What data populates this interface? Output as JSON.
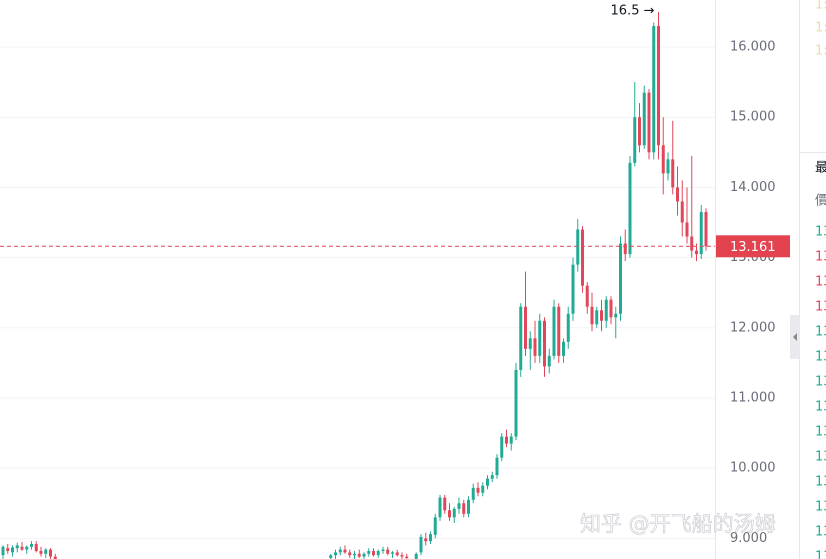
{
  "chart_data": {
    "type": "candlestick",
    "up_color": "#22ab94",
    "down_color": "#e0475a",
    "ylim": [
      8.706,
      16.67
    ],
    "yticks": [
      {
        "value": 16,
        "label": "16.000"
      },
      {
        "value": 15,
        "label": "15.000"
      },
      {
        "value": 14,
        "label": "14.000"
      },
      {
        "value": 13,
        "label": "13.000"
      },
      {
        "value": 12,
        "label": "12.000"
      },
      {
        "value": 11,
        "label": "11.000"
      },
      {
        "value": 10,
        "label": "10.000"
      },
      {
        "value": 9,
        "label": "9.000"
      }
    ],
    "grid": true,
    "last_price": 13.161,
    "high_annotation": "16.5 →",
    "watermark": "知乎 @开飞船的汤姆",
    "ohlc": [
      [
        8.76,
        8.9,
        8.7,
        8.88
      ],
      [
        8.86,
        8.92,
        8.78,
        8.82
      ],
      [
        8.8,
        8.9,
        8.74,
        8.87
      ],
      [
        8.86,
        8.94,
        8.8,
        8.9
      ],
      [
        8.88,
        8.95,
        8.82,
        8.84
      ],
      [
        8.84,
        8.9,
        8.78,
        8.88
      ],
      [
        8.88,
        8.96,
        8.84,
        8.92
      ],
      [
        8.92,
        8.96,
        8.8,
        8.82
      ],
      [
        8.82,
        8.88,
        8.74,
        8.78
      ],
      [
        8.78,
        8.86,
        8.72,
        8.84
      ],
      [
        8.84,
        8.86,
        8.7,
        8.74
      ],
      [
        8.74,
        8.78,
        8.66,
        8.7
      ],
      null,
      null,
      null,
      null,
      null,
      null,
      null,
      null,
      null,
      null,
      null,
      null,
      null,
      null,
      null,
      null,
      null,
      null,
      null,
      null,
      null,
      null,
      null,
      null,
      null,
      null,
      null,
      null,
      null,
      null,
      null,
      null,
      null,
      null,
      null,
      null,
      null,
      null,
      null,
      null,
      null,
      null,
      null,
      null,
      null,
      null,
      null,
      null,
      null,
      null,
      null,
      null,
      null,
      null,
      null,
      null,
      null,
      [
        8.72,
        8.78,
        8.66,
        8.76
      ],
      [
        8.76,
        8.84,
        8.7,
        8.8
      ],
      [
        8.8,
        8.88,
        8.76,
        8.84
      ],
      [
        8.84,
        8.9,
        8.78,
        8.8
      ],
      [
        8.8,
        8.84,
        8.72,
        8.76
      ],
      [
        8.76,
        8.82,
        8.7,
        8.78
      ],
      [
        8.78,
        8.84,
        8.72,
        8.74
      ],
      [
        8.74,
        8.8,
        8.68,
        8.78
      ],
      [
        8.78,
        8.86,
        8.74,
        8.82
      ],
      [
        8.82,
        8.86,
        8.74,
        8.76
      ],
      [
        8.76,
        8.84,
        8.72,
        8.82
      ],
      [
        8.82,
        8.88,
        8.78,
        8.84
      ],
      [
        8.84,
        8.88,
        8.76,
        8.78
      ],
      [
        8.78,
        8.82,
        8.72,
        8.8
      ],
      [
        8.8,
        8.84,
        8.74,
        8.76
      ],
      [
        8.76,
        8.8,
        8.7,
        8.74
      ],
      [
        8.74,
        8.78,
        8.68,
        8.72
      ],
      null,
      [
        8.7,
        8.8,
        8.66,
        8.78
      ],
      [
        8.8,
        9.06,
        8.76,
        9.02
      ],
      [
        9.0,
        9.08,
        8.9,
        8.96
      ],
      [
        8.96,
        9.1,
        8.92,
        9.06
      ],
      [
        9.05,
        9.35,
        9.0,
        9.3
      ],
      [
        9.3,
        9.62,
        9.25,
        9.58
      ],
      [
        9.58,
        9.62,
        9.35,
        9.4
      ],
      [
        9.4,
        9.5,
        9.25,
        9.3
      ],
      [
        9.3,
        9.45,
        9.22,
        9.42
      ],
      [
        9.42,
        9.58,
        9.35,
        9.5
      ],
      [
        9.5,
        9.55,
        9.3,
        9.35
      ],
      [
        9.35,
        9.6,
        9.3,
        9.55
      ],
      [
        9.55,
        9.78,
        9.5,
        9.72
      ],
      [
        9.72,
        9.8,
        9.6,
        9.65
      ],
      [
        9.65,
        9.8,
        9.6,
        9.75
      ],
      [
        9.75,
        9.9,
        9.7,
        9.85
      ],
      [
        9.85,
        9.95,
        9.8,
        9.9
      ],
      [
        9.9,
        10.2,
        9.85,
        10.15
      ],
      [
        10.15,
        10.5,
        10.1,
        10.45
      ],
      [
        10.45,
        10.55,
        10.3,
        10.35
      ],
      [
        10.35,
        10.5,
        10.25,
        10.45
      ],
      [
        10.45,
        11.5,
        10.4,
        11.4
      ],
      [
        11.4,
        12.35,
        11.3,
        12.3
      ],
      [
        12.3,
        12.8,
        11.6,
        11.7
      ],
      [
        11.7,
        11.95,
        11.4,
        11.85
      ],
      [
        11.85,
        12.1,
        11.5,
        11.6
      ],
      [
        11.6,
        12.2,
        11.5,
        12.1
      ],
      [
        12.1,
        12.15,
        11.3,
        11.45
      ],
      [
        11.45,
        11.7,
        11.35,
        11.6
      ],
      [
        11.6,
        12.4,
        11.55,
        12.3
      ],
      [
        12.3,
        12.35,
        11.5,
        11.6
      ],
      [
        11.6,
        11.85,
        11.5,
        11.8
      ],
      [
        11.8,
        12.3,
        11.7,
        12.2
      ],
      [
        12.2,
        13.0,
        12.1,
        12.9
      ],
      [
        12.9,
        13.55,
        12.8,
        13.4
      ],
      [
        13.4,
        13.45,
        12.5,
        12.6
      ],
      [
        12.6,
        12.65,
        12.2,
        12.3
      ],
      [
        12.3,
        12.5,
        11.95,
        12.05
      ],
      [
        12.05,
        12.3,
        12.0,
        12.25
      ],
      [
        12.25,
        12.4,
        11.95,
        12.1
      ],
      [
        12.1,
        12.45,
        12.0,
        12.4
      ],
      [
        12.4,
        12.45,
        12.05,
        12.15
      ],
      [
        12.15,
        12.3,
        11.85,
        12.2
      ],
      [
        12.2,
        13.3,
        12.1,
        13.2
      ],
      [
        13.2,
        13.4,
        12.95,
        13.05
      ],
      [
        13.05,
        14.45,
        13.0,
        14.35
      ],
      [
        14.35,
        15.5,
        14.3,
        15.0
      ],
      [
        15.0,
        15.2,
        14.5,
        14.6
      ],
      [
        14.6,
        15.45,
        14.55,
        15.35
      ],
      [
        15.35,
        15.4,
        14.4,
        14.5
      ],
      [
        14.5,
        16.35,
        14.4,
        16.3
      ],
      [
        16.3,
        16.5,
        14.4,
        14.6
      ],
      [
        14.6,
        15.0,
        13.9,
        14.2
      ],
      [
        14.2,
        14.5,
        14.1,
        14.4
      ],
      [
        14.4,
        14.95,
        13.9,
        14.0
      ],
      [
        14.0,
        14.3,
        13.6,
        13.8
      ],
      [
        13.8,
        14.1,
        13.3,
        13.5
      ],
      [
        13.5,
        14.0,
        13.2,
        13.3
      ],
      [
        13.3,
        14.45,
        13.0,
        13.1
      ],
      [
        13.1,
        13.2,
        12.95,
        13.05
      ],
      [
        13.05,
        13.75,
        12.98,
        13.65
      ],
      [
        13.65,
        13.7,
        13.1,
        13.161
      ]
    ]
  },
  "side_panel": {
    "header": "最",
    "subheader": "價",
    "top_rows": [
      "1:",
      "1:",
      "1:"
    ],
    "rows": [
      {
        "text": "13",
        "color": "#22ab94"
      },
      {
        "text": "13",
        "color": "#e0475a"
      },
      {
        "text": "13",
        "color": "#e0475a"
      },
      {
        "text": "13",
        "color": "#e0475a"
      },
      {
        "text": "13",
        "color": "#22ab94"
      },
      {
        "text": "13",
        "color": "#22ab94"
      },
      {
        "text": "13",
        "color": "#22ab94"
      },
      {
        "text": "13",
        "color": "#22ab94"
      },
      {
        "text": "13",
        "color": "#22ab94"
      },
      {
        "text": "13",
        "color": "#22ab94"
      },
      {
        "text": "13",
        "color": "#22ab94"
      },
      {
        "text": "13",
        "color": "#22ab94"
      },
      {
        "text": "13",
        "color": "#22ab94"
      },
      {
        "text": "13",
        "color": "#22ab94"
      }
    ]
  }
}
